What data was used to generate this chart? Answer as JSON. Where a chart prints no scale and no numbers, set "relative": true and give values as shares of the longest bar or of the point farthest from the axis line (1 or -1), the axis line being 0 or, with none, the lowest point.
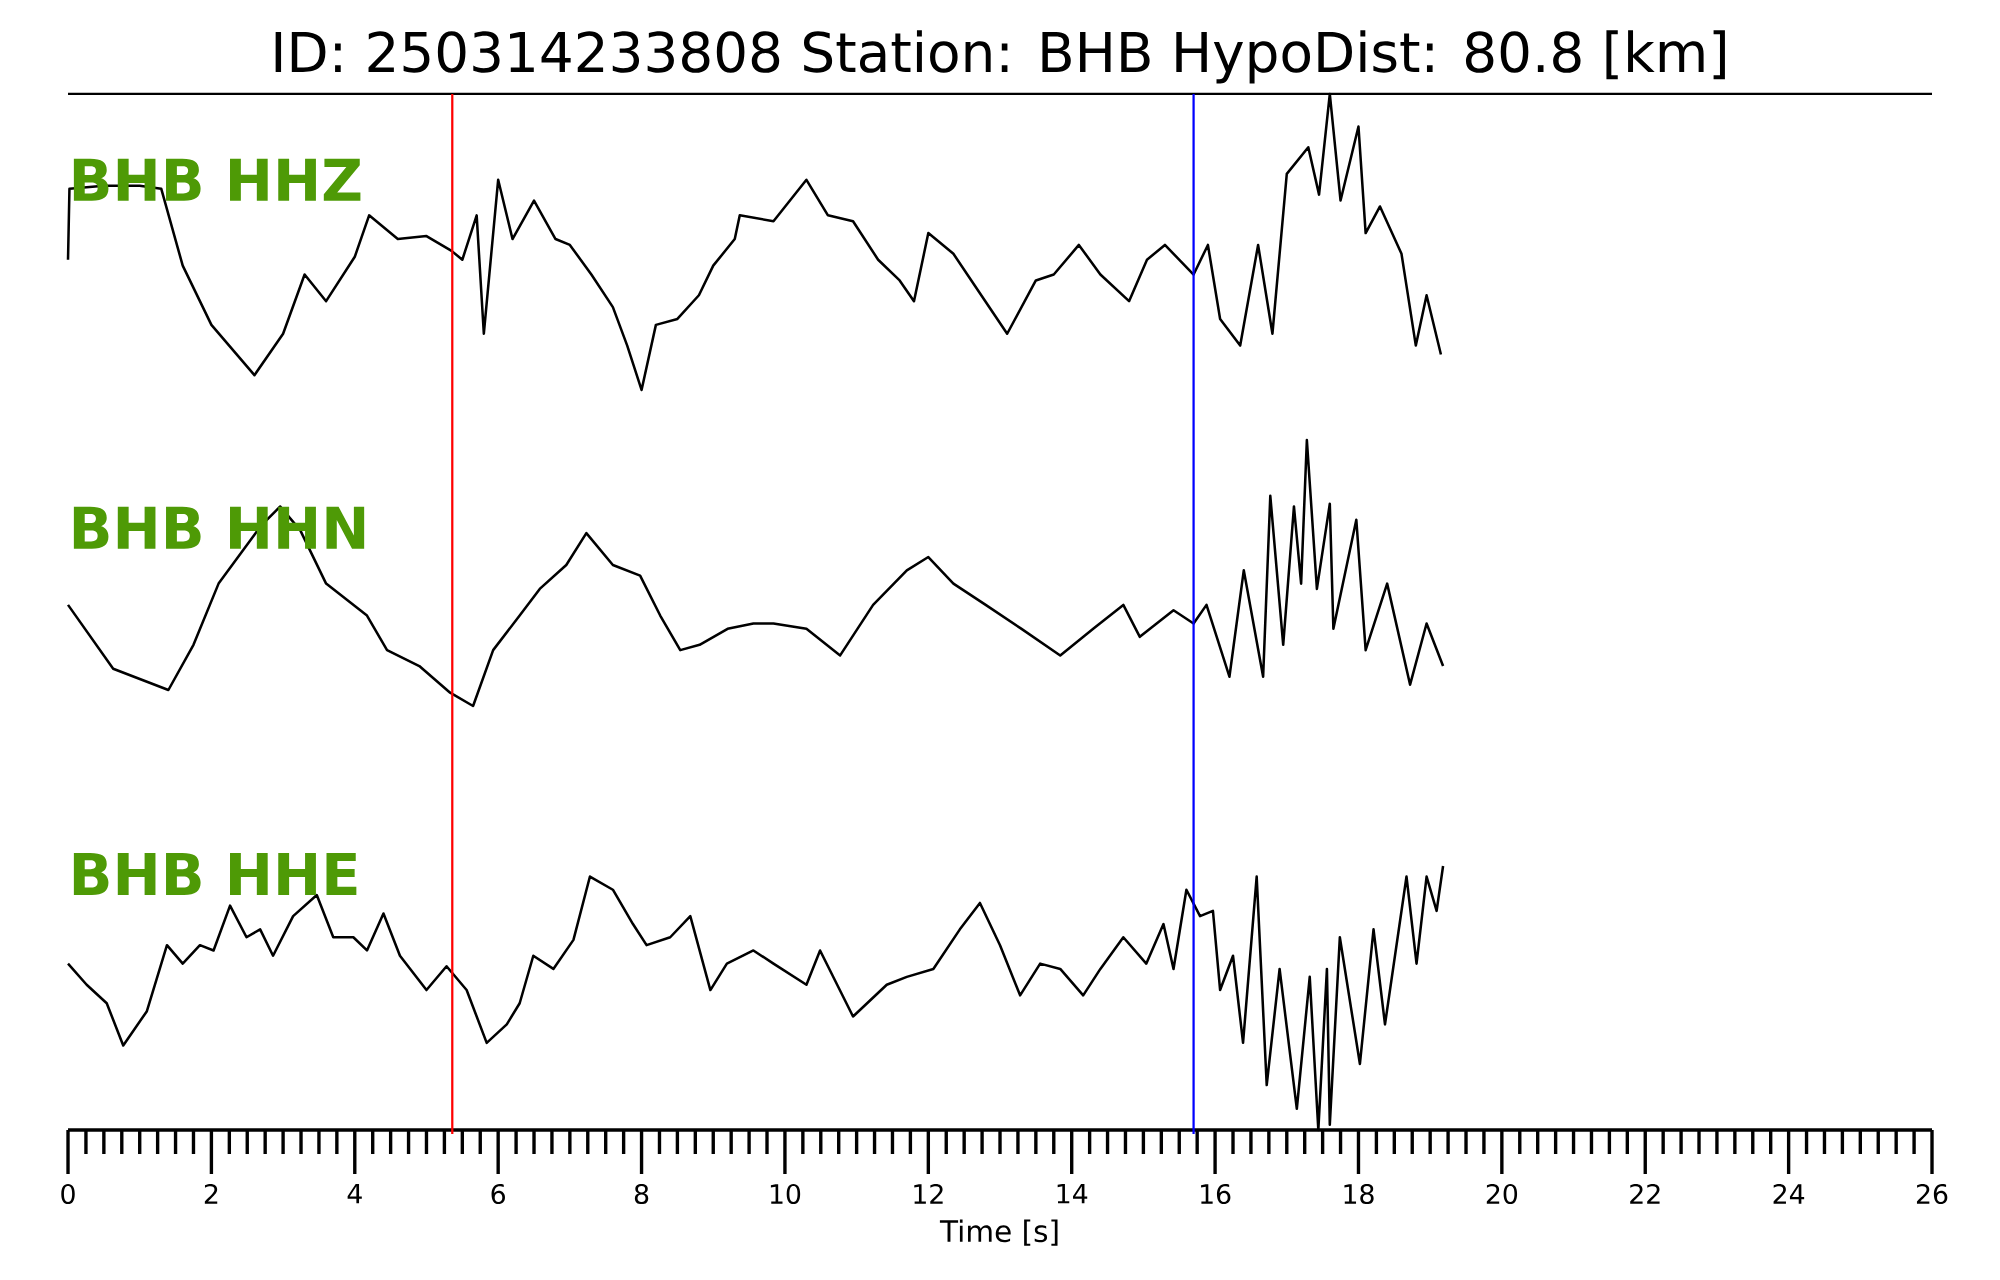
{
  "chart_data": [
    {
      "type": "line",
      "title": "ID: 250314233808   Station: BHB   HypoDist:    80.8 [km]",
      "relative": true,
      "xlim": [
        0,
        26
      ],
      "tick_labels": false,
      "x": [
        0,
        0.02,
        0.5,
        1.0,
        1.3,
        1.6,
        2.0,
        2.6,
        3.0,
        3.3,
        3.6,
        4.0,
        4.2,
        4.6,
        5.0,
        5.35,
        5.5,
        5.7,
        5.8,
        6.0,
        6.2,
        6.5,
        6.8,
        7.0,
        7.3,
        7.6,
        7.8,
        8.0,
        8.2,
        8.5,
        8.8,
        9.0,
        9.3,
        9.37,
        9.84,
        10.3,
        10.6,
        10.95,
        11.3,
        11.6,
        11.8,
        12.0,
        12.35,
        12.6,
        13.1,
        13.5,
        13.75,
        14.1,
        14.4,
        14.8,
        15.05,
        15.3,
        15.7,
        15.9,
        16.07,
        16.35,
        16.6,
        16.8,
        17.0,
        17.3,
        17.45,
        17.6,
        17.75,
        18.0,
        18.1,
        18.3,
        18.6,
        18.8,
        18.95,
        19.15
      ],
      "series": [
        {
          "name": "BHB HHZ",
          "color": "#000000",
          "values": [
            0.44,
            0.68,
            0.69,
            0.69,
            0.68,
            0.42,
            0.22,
            0.05,
            0.19,
            0.39,
            0.3,
            0.45,
            0.59,
            0.51,
            0.52,
            0.47,
            0.44,
            0.59,
            0.19,
            0.71,
            0.51,
            0.64,
            0.51,
            0.49,
            0.39,
            0.28,
            0.15,
            0,
            0.22,
            0.24,
            0.32,
            0.42,
            0.51,
            0.59,
            0.57,
            0.71,
            0.59,
            0.57,
            0.44,
            0.37,
            0.3,
            0.53,
            0.46,
            0.37,
            0.19,
            0.37,
            0.39,
            0.49,
            0.39,
            0.3,
            0.44,
            0.49,
            0.39,
            0.49,
            0.24,
            0.15,
            0.49,
            0.19,
            0.73,
            0.82,
            0.66,
            1.0,
            0.64,
            0.89,
            0.53,
            0.62,
            0.46,
            0.15,
            0.32,
            0.12
          ]
        }
      ],
      "ref_lines": [
        {
          "axis": "x",
          "value": 5.36,
          "color": "#ff0000"
        },
        {
          "axis": "x",
          "value": 15.7,
          "color": "#0000ff"
        }
      ]
    },
    {
      "type": "line",
      "relative": true,
      "xlim": [
        0,
        26
      ],
      "tick_labels": false,
      "x": [
        0.0,
        0.63,
        1.4,
        1.75,
        2.1,
        2.7,
        2.96,
        3.24,
        3.6,
        4.17,
        4.45,
        4.9,
        5.33,
        5.65,
        5.93,
        6.3,
        6.58,
        6.95,
        7.23,
        7.6,
        7.98,
        8.26,
        8.54,
        8.81,
        9.2,
        9.56,
        9.84,
        10.3,
        10.77,
        11.23,
        11.7,
        12.0,
        12.35,
        12.8,
        13.3,
        13.84,
        14.3,
        14.72,
        14.95,
        15.42,
        15.7,
        15.88,
        16.2,
        16.4,
        16.67,
        16.77,
        16.95,
        17.1,
        17.2,
        17.28,
        17.42,
        17.6,
        17.65,
        17.97,
        18.1,
        18.4,
        18.72,
        18.95,
        19.18
      ],
      "series": [
        {
          "name": "BHB HHN",
          "color": "#000000",
          "values": [
            0.38,
            0.14,
            0.06,
            0.23,
            0.46,
            0.68,
            0.75,
            0.66,
            0.46,
            0.34,
            0.21,
            0.15,
            0.05,
            0,
            0.21,
            0.34,
            0.44,
            0.53,
            0.65,
            0.53,
            0.49,
            0.34,
            0.21,
            0.23,
            0.29,
            0.31,
            0.31,
            0.29,
            0.19,
            0.38,
            0.51,
            0.56,
            0.46,
            0.38,
            0.29,
            0.19,
            0.29,
            0.38,
            0.26,
            0.36,
            0.31,
            0.38,
            0.11,
            0.51,
            0.11,
            0.79,
            0.23,
            0.75,
            0.46,
            1.0,
            0.44,
            0.76,
            0.29,
            0.7,
            0.21,
            0.46,
            0.08,
            0.31,
            0.15
          ]
        }
      ],
      "ref_lines": [
        {
          "axis": "x",
          "value": 5.36,
          "color": "#ff0000"
        },
        {
          "axis": "x",
          "value": 15.7,
          "color": "#0000ff"
        }
      ]
    },
    {
      "type": "line",
      "relative": true,
      "xlim": [
        0,
        26
      ],
      "xticks": [
        0,
        2,
        4,
        6,
        8,
        10,
        12,
        14,
        16,
        18,
        20,
        22,
        24,
        26
      ],
      "xlabel": "Time [s]",
      "tick_labels": "x",
      "x": [
        0.0,
        0.26,
        0.54,
        0.77,
        1.1,
        1.38,
        1.6,
        1.84,
        2.03,
        2.26,
        2.49,
        2.68,
        2.86,
        3.14,
        3.47,
        3.7,
        3.98,
        4.17,
        4.4,
        4.63,
        5.0,
        5.28,
        5.56,
        5.84,
        6.12,
        6.3,
        6.49,
        6.77,
        7.05,
        7.28,
        7.6,
        7.88,
        8.07,
        8.4,
        8.68,
        8.96,
        9.19,
        9.56,
        9.84,
        10.3,
        10.49,
        10.95,
        11.42,
        11.7,
        12.07,
        12.44,
        12.72,
        13.0,
        13.28,
        13.56,
        13.84,
        14.16,
        14.4,
        14.72,
        15.04,
        15.28,
        15.42,
        15.6,
        15.79,
        15.97,
        16.07,
        16.25,
        16.39,
        16.58,
        16.72,
        16.9,
        17.14,
        17.32,
        17.44,
        17.56,
        17.6,
        17.74,
        18.02,
        18.21,
        18.37,
        18.67,
        18.81,
        18.95,
        19.09,
        19.18
      ],
      "series": [
        {
          "name": "BHB HHE",
          "color": "#000000",
          "values": [
            0.63,
            0.55,
            0.48,
            0.32,
            0.45,
            0.7,
            0.63,
            0.7,
            0.68,
            0.85,
            0.73,
            0.76,
            0.66,
            0.81,
            0.89,
            0.73,
            0.73,
            0.68,
            0.82,
            0.66,
            0.53,
            0.62,
            0.53,
            0.33,
            0.4,
            0.48,
            0.66,
            0.61,
            0.72,
            0.96,
            0.91,
            0.78,
            0.7,
            0.73,
            0.81,
            0.53,
            0.63,
            0.68,
            0.63,
            0.55,
            0.68,
            0.43,
            0.55,
            0.58,
            0.61,
            0.76,
            0.86,
            0.7,
            0.51,
            0.63,
            0.61,
            0.51,
            0.61,
            0.73,
            0.63,
            0.78,
            0.61,
            0.91,
            0.81,
            0.83,
            0.53,
            0.66,
            0.33,
            0.96,
            0.17,
            0.61,
            0.08,
            0.58,
            0,
            0.61,
            0.02,
            0.73,
            0.25,
            0.76,
            0.4,
            0.96,
            0.63,
            0.96,
            0.83,
            1.0
          ]
        }
      ],
      "ref_lines": [
        {
          "axis": "x",
          "value": 5.36,
          "color": "#ff0000"
        },
        {
          "axis": "x",
          "value": 15.7,
          "color": "#0000ff"
        }
      ]
    }
  ]
}
